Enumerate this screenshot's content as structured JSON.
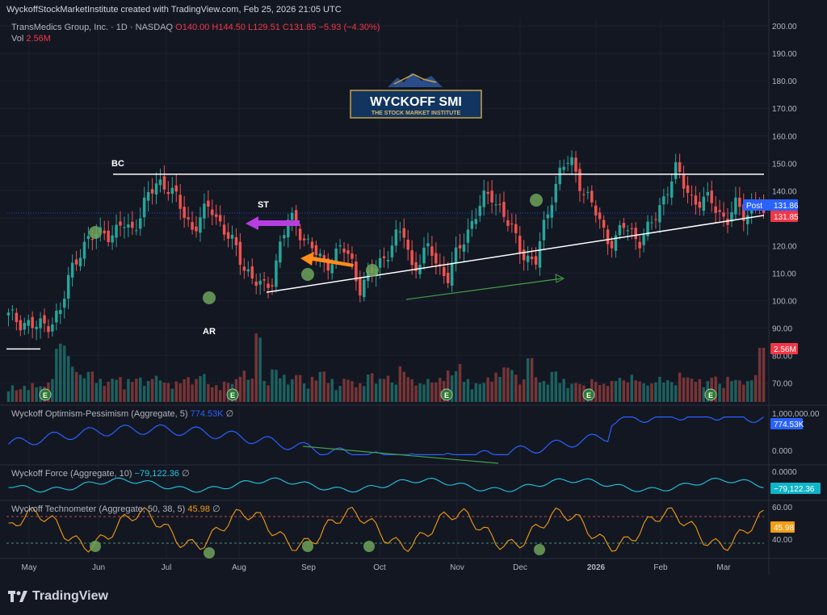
{
  "header": {
    "attribution": "WyckoffStockMarketInstitute created with TradingView.com, Feb 25, 2026 21:05 UTC",
    "symbol_line": "TransMedics Group, Inc. · 1D · NASDAQ",
    "open": "O140.00",
    "high": "H144.50",
    "low": "L129.51",
    "close": "C131.85",
    "change": "−5.93 (−4.30%)",
    "vol_label": "Vol",
    "vol_value": "2.56M"
  },
  "logo": {
    "title": "WYCKOFF SMI",
    "subtitle": "THE STOCK MARKET INSTITUTE"
  },
  "brand": {
    "name": "TradingView"
  },
  "colors": {
    "background": "#131722",
    "up": "#26a69a",
    "down": "#ef5350",
    "grid": "#1e2230",
    "optimism_line": "#2962ff",
    "force_line": "#22c6e3",
    "technometer_line": "#f39c12",
    "post_badge": "#2962ff",
    "price_badge": "#f23645"
  },
  "chart_data": {
    "type": "candlestick",
    "x_labels": [
      "May",
      "Jun",
      "Jul",
      "Aug",
      "Sep",
      "Oct",
      "Nov",
      "Dec",
      "2026",
      "Feb",
      "Mar"
    ],
    "price_axis": {
      "ticks": [
        "200.00",
        "190.00",
        "180.00",
        "170.00",
        "160.00",
        "150.00",
        "140.00",
        "130.00",
        "120.00",
        "110.00",
        "100.00",
        "90.00",
        "80.00",
        "70.00"
      ],
      "range": [
        66,
        203
      ]
    },
    "price_anchors": [
      [
        "May",
        94
      ],
      [
        "May",
        93
      ],
      [
        "May",
        92
      ],
      [
        "May",
        90
      ],
      [
        "May",
        91
      ],
      [
        "May",
        93
      ],
      [
        "May",
        96
      ],
      [
        "May",
        110
      ],
      [
        "May",
        118
      ],
      [
        "May",
        121
      ],
      [
        "May",
        124
      ],
      [
        "May",
        126
      ],
      [
        "May",
        123
      ],
      [
        "Jun",
        128
      ],
      [
        "Jun",
        126
      ],
      [
        "Jun",
        131
      ],
      [
        "Jun",
        138
      ],
      [
        "Jun",
        144
      ],
      [
        "Jun",
        142
      ],
      [
        "Jun",
        137
      ],
      [
        "Jun",
        132
      ],
      [
        "Jun",
        126
      ],
      [
        "Jul",
        130
      ],
      [
        "Jul",
        135
      ],
      [
        "Jul",
        129
      ],
      [
        "Jul",
        123
      ],
      [
        "Jul",
        118
      ],
      [
        "Jul",
        112
      ],
      [
        "Jul",
        107
      ],
      [
        "Jul",
        104
      ],
      [
        "Jul",
        108
      ],
      [
        "Aug",
        121
      ],
      [
        "Aug",
        130
      ],
      [
        "Aug",
        127
      ],
      [
        "Aug",
        121
      ],
      [
        "Aug",
        117
      ],
      [
        "Aug",
        113
      ],
      [
        "Aug",
        116
      ],
      [
        "Aug",
        119
      ],
      [
        "Sep",
        115
      ],
      [
        "Sep",
        105
      ],
      [
        "Sep",
        108
      ],
      [
        "Sep",
        113
      ],
      [
        "Sep",
        117
      ],
      [
        "Sep",
        122
      ],
      [
        "Sep",
        125
      ],
      [
        "Sep",
        112
      ],
      [
        "Oct",
        115
      ],
      [
        "Oct",
        119
      ],
      [
        "Oct",
        113
      ],
      [
        "Oct",
        108
      ],
      [
        "Oct",
        116
      ],
      [
        "Oct",
        124
      ],
      [
        "Oct",
        130
      ],
      [
        "Oct",
        136
      ],
      [
        "Nov",
        139
      ],
      [
        "Nov",
        134
      ],
      [
        "Nov",
        127
      ],
      [
        "Nov",
        121
      ],
      [
        "Nov",
        116
      ],
      [
        "Nov",
        113
      ],
      [
        "Nov",
        127
      ],
      [
        "Nov",
        140
      ],
      [
        "Dec",
        148
      ],
      [
        "Dec",
        151
      ],
      [
        "Dec",
        144
      ],
      [
        "Dec",
        137
      ],
      [
        "Dec",
        131
      ],
      [
        "Dec",
        124
      ],
      [
        "Dec",
        121
      ],
      [
        "Dec",
        127
      ],
      [
        "Dec",
        125
      ],
      [
        "2026",
        122
      ],
      [
        "2026",
        126
      ],
      [
        "2026",
        133
      ],
      [
        "2026",
        141
      ],
      [
        "2026",
        147
      ],
      [
        "2026",
        142
      ],
      [
        "2026",
        137
      ],
      [
        "2026",
        135
      ],
      [
        "Feb",
        137
      ],
      [
        "Feb",
        132
      ],
      [
        "Feb",
        129
      ],
      [
        "Feb",
        135
      ],
      [
        "Feb",
        131
      ],
      [
        "Feb",
        136
      ],
      [
        "Feb",
        131.85
      ]
    ],
    "volume_profile": [
      5,
      4,
      5,
      6,
      5,
      8,
      25,
      20,
      14,
      10,
      12,
      8,
      7,
      9,
      6,
      8,
      9,
      7,
      10,
      8,
      6,
      7,
      9,
      8,
      11,
      6,
      5,
      7,
      8,
      12,
      9,
      30,
      7,
      13,
      10,
      8,
      11,
      6,
      9,
      12,
      8,
      5,
      9,
      7,
      6,
      11,
      8,
      10,
      7,
      14,
      9,
      6,
      8,
      7,
      9,
      12,
      16,
      8,
      6,
      7,
      9,
      11,
      14,
      10,
      8,
      19,
      9,
      7,
      12,
      8,
      6,
      7,
      5,
      8,
      6,
      7,
      9,
      8,
      10,
      7,
      6,
      9,
      8,
      7,
      11,
      9,
      8,
      7,
      10,
      6,
      9,
      8,
      7,
      10,
      24
    ],
    "technometer_range": [
      30,
      62
    ],
    "technometer_ticks": [
      "60.00",
      "40.00"
    ],
    "optimism_ticks": [
      "1,000,000.00",
      "0.000"
    ],
    "force_ticks": [
      "0.0000"
    ]
  },
  "labels": {
    "bc": "BC",
    "st": "ST",
    "ar": "AR",
    "post_tag": "Post",
    "post_price": "131.86",
    "last_price": "131.85",
    "vol_badge": "2.56M",
    "optimism_badge": "774.53K",
    "force_badge": "−79,122.36",
    "techno_badge": "45.98",
    "earnings_marker": "E"
  },
  "indicators": {
    "optimism": {
      "name": "Wyckoff Optimism-Pessimism (Aggregate, 5)",
      "value": "774.53K",
      "flag": "∅"
    },
    "force": {
      "name": "Wyckoff Force (Aggregate, 10)",
      "value": "−79,122.36",
      "flag": "∅"
    },
    "technometer": {
      "name": "Wyckoff Technometer (Aggregate, 50, 38, 5)",
      "value": "45.98",
      "flag": "∅"
    }
  }
}
